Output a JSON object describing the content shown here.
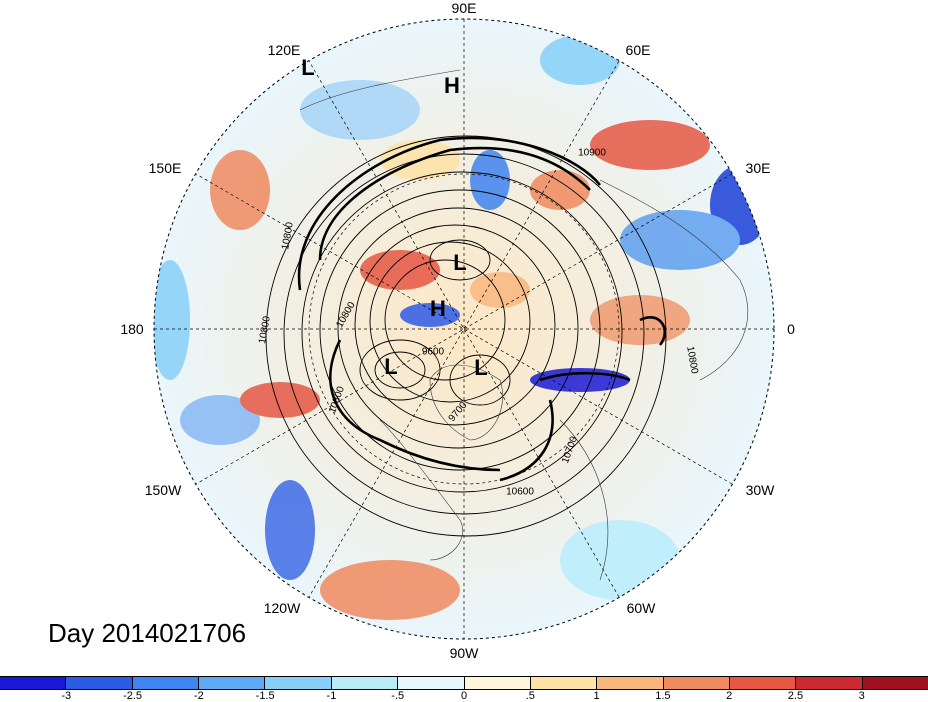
{
  "map": {
    "longitude_labels": [
      "90E",
      "60E",
      "30E",
      "0",
      "30W",
      "60W",
      "90W",
      "120W",
      "150W",
      "180",
      "150E",
      "120E"
    ],
    "pressure_centers": [
      "L",
      "H",
      "L",
      "H",
      "L",
      "L"
    ],
    "contour_labels": [
      "10900",
      "10800",
      "10800",
      "10800",
      "9600",
      "9700",
      "10700",
      "10600",
      "10800",
      "10800"
    ],
    "timestamp": "Day 2014021706"
  },
  "colorbar": {
    "colors": [
      "#1a1ad6",
      "#2e5be6",
      "#3f84f0",
      "#5eaaf5",
      "#87cff8",
      "#b8ecfb",
      "#e6f8fd",
      "#fff6d9",
      "#fde3a6",
      "#f9b77e",
      "#f08a5f",
      "#e65744",
      "#cc2a30",
      "#a0111f"
    ],
    "tick_labels": [
      "-3",
      "-2.5",
      "-2",
      "-1.5",
      "-1",
      "-.5",
      "0",
      ".5",
      "1",
      "1.5",
      "2",
      "2.5",
      "3"
    ]
  }
}
